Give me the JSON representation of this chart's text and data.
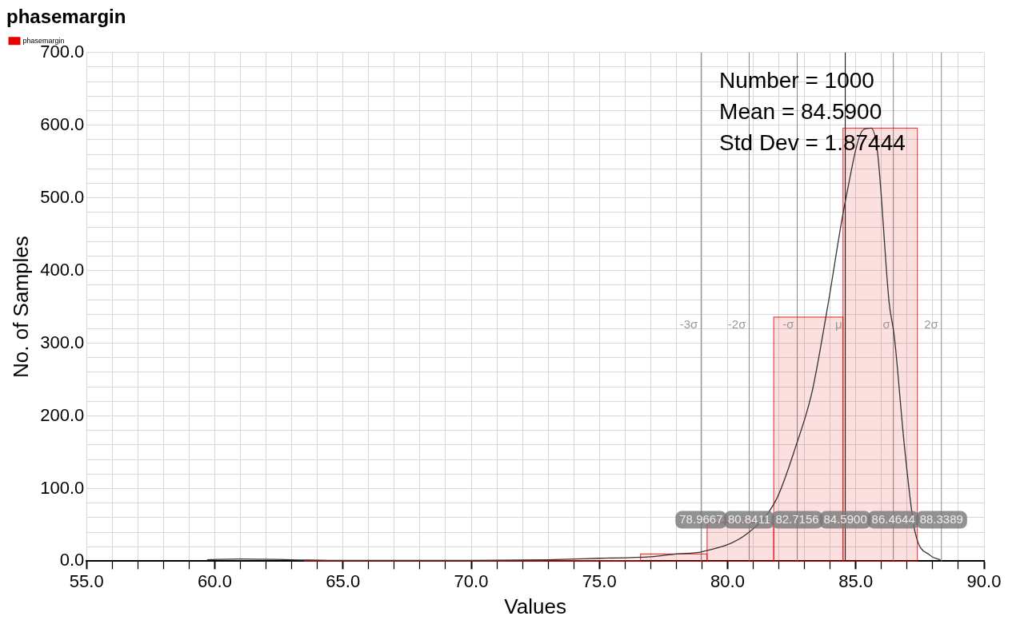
{
  "chart_data": {
    "type": "histogram",
    "title": "phasemargin",
    "xlabel": "Values",
    "ylabel": "No. of Samples",
    "series": [
      {
        "name": "phasemargin",
        "color": "#e60000",
        "bins": [
          63.5,
          71.5,
          76.6,
          79.2,
          81.8,
          84.5,
          87.4
        ],
        "values": [
          1,
          1,
          10,
          53,
          336,
          596
        ]
      },
      {
        "type": "line",
        "color": "#333333",
        "x": [
          59.7,
          61,
          63,
          65,
          70,
          73,
          75,
          77,
          78,
          79,
          80.8,
          81.9,
          82.65,
          83.3,
          83.9,
          84.6,
          85.3,
          85.6,
          85.85,
          86.3,
          86.5,
          86.9,
          87.3,
          87.9,
          88.3
        ],
        "values": [
          2,
          3,
          2,
          1,
          1,
          2,
          4,
          6,
          10,
          13,
          39,
          85,
          157,
          234,
          350,
          497,
          594,
          596,
          562,
          356,
          310,
          157,
          42,
          8,
          2
        ]
      }
    ],
    "xlim": [
      55,
      90
    ],
    "ylim": [
      0,
      700
    ],
    "xticks": [
      {
        "value": 55,
        "label": "55.0"
      },
      {
        "value": 56,
        "label": null
      },
      {
        "value": 57,
        "label": null
      },
      {
        "value": 58,
        "label": null
      },
      {
        "value": 59,
        "label": null
      },
      {
        "value": 60,
        "label": "60.0"
      },
      {
        "value": 61,
        "label": null
      },
      {
        "value": 62,
        "label": null
      },
      {
        "value": 63,
        "label": null
      },
      {
        "value": 64,
        "label": null
      },
      {
        "value": 65,
        "label": "65.0"
      },
      {
        "value": 66,
        "label": null
      },
      {
        "value": 67,
        "label": null
      },
      {
        "value": 68,
        "label": null
      },
      {
        "value": 69,
        "label": null
      },
      {
        "value": 70,
        "label": "70.0"
      },
      {
        "value": 71,
        "label": null
      },
      {
        "value": 72,
        "label": null
      },
      {
        "value": 73,
        "label": null
      },
      {
        "value": 74,
        "label": null
      },
      {
        "value": 75,
        "label": "75.0"
      },
      {
        "value": 76,
        "label": null
      },
      {
        "value": 77,
        "label": null
      },
      {
        "value": 78,
        "label": null
      },
      {
        "value": 79,
        "label": null
      },
      {
        "value": 80,
        "label": "80.0"
      },
      {
        "value": 81,
        "label": null
      },
      {
        "value": 82,
        "label": null
      },
      {
        "value": 83,
        "label": null
      },
      {
        "value": 84,
        "label": null
      },
      {
        "value": 85,
        "label": "85.0"
      },
      {
        "value": 86,
        "label": null
      },
      {
        "value": 87,
        "label": null
      },
      {
        "value": 88,
        "label": null
      },
      {
        "value": 89,
        "label": null
      },
      {
        "value": 90,
        "label": "90.0"
      }
    ],
    "yticks": [
      {
        "value": 0,
        "label": "0.0"
      },
      {
        "value": 20,
        "label": null
      },
      {
        "value": 40,
        "label": null
      },
      {
        "value": 60,
        "label": null
      },
      {
        "value": 80,
        "label": null
      },
      {
        "value": 100,
        "label": "100.0"
      },
      {
        "value": 120,
        "label": null
      },
      {
        "value": 140,
        "label": null
      },
      {
        "value": 160,
        "label": null
      },
      {
        "value": 180,
        "label": null
      },
      {
        "value": 200,
        "label": "200.0"
      },
      {
        "value": 220,
        "label": null
      },
      {
        "value": 240,
        "label": null
      },
      {
        "value": 260,
        "label": null
      },
      {
        "value": 280,
        "label": null
      },
      {
        "value": 300,
        "label": "300.0"
      },
      {
        "value": 320,
        "label": null
      },
      {
        "value": 340,
        "label": null
      },
      {
        "value": 360,
        "label": null
      },
      {
        "value": 380,
        "label": null
      },
      {
        "value": 400,
        "label": "400.0"
      },
      {
        "value": 420,
        "label": null
      },
      {
        "value": 440,
        "label": null
      },
      {
        "value": 460,
        "label": null
      },
      {
        "value": 480,
        "label": null
      },
      {
        "value": 500,
        "label": "500.0"
      },
      {
        "value": 520,
        "label": null
      },
      {
        "value": 540,
        "label": null
      },
      {
        "value": 560,
        "label": null
      },
      {
        "value": 580,
        "label": null
      },
      {
        "value": 600,
        "label": "600.0"
      },
      {
        "value": 620,
        "label": null
      },
      {
        "value": 640,
        "label": null
      },
      {
        "value": 660,
        "label": null
      },
      {
        "value": 680,
        "label": null
      },
      {
        "value": 700,
        "label": "700.0"
      }
    ],
    "ref_lines": [
      {
        "axis": "x",
        "value": 78.9667,
        "label": "-3σ",
        "color": "#888888"
      },
      {
        "axis": "x",
        "value": 80.8411,
        "label": "-2σ",
        "color": "#888888"
      },
      {
        "axis": "x",
        "value": 82.7156,
        "label": "-σ",
        "color": "#888888"
      },
      {
        "axis": "x",
        "value": 84.59,
        "label": "μ",
        "color": "#000000"
      },
      {
        "axis": "x",
        "value": 86.4644,
        "label": "σ",
        "color": "#888888"
      },
      {
        "axis": "x",
        "value": 88.3389,
        "label": "2σ",
        "color": "#888888"
      }
    ],
    "annotations": [
      "Number = 1000",
      "Mean = 84.5900",
      "Std Dev = 1.87444",
      {
        "text": "78.9667",
        "x": 78.9667,
        "y": 57
      },
      {
        "text": "80.8411",
        "x": 80.8411,
        "y": 57
      },
      {
        "text": "82.7156",
        "x": 82.7156,
        "y": 57
      },
      {
        "text": "84.5900",
        "x": 84.59,
        "y": 57
      },
      {
        "text": "86.4644",
        "x": 86.4644,
        "y": 57
      },
      {
        "text": "88.3389",
        "x": 88.3389,
        "y": 57
      }
    ],
    "grid": true,
    "legend": "top left"
  }
}
